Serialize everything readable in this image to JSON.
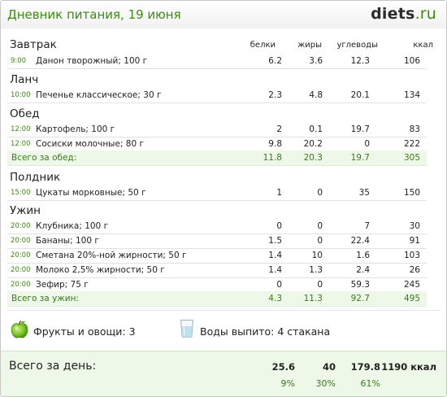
{
  "header": {
    "title": "Дневник питания, 19 июня",
    "logo_main": "diets",
    "logo_tld": ".ru"
  },
  "columns": {
    "protein": "белки",
    "fat": "жиры",
    "carbs": "углеводы",
    "kcal": "ккал"
  },
  "meals": [
    {
      "name": "Завтрак",
      "items": [
        {
          "time": "9:00",
          "food": "Данон творожный; 100 г",
          "protein": "6.2",
          "fat": "3.6",
          "carbs": "12.3",
          "kcal": "106"
        }
      ]
    },
    {
      "name": "Ланч",
      "items": [
        {
          "time": "10:00",
          "food": "Печенье классическое; 30 г",
          "protein": "2.3",
          "fat": "4.8",
          "carbs": "20.1",
          "kcal": "134"
        }
      ]
    },
    {
      "name": "Обед",
      "items": [
        {
          "time": "12:00",
          "food": "Картофель; 100 г",
          "protein": "2",
          "fat": "0.1",
          "carbs": "19.7",
          "kcal": "83"
        },
        {
          "time": "12:00",
          "food": "Сосиски молочные; 80 г",
          "protein": "9.8",
          "fat": "20.2",
          "carbs": "0",
          "kcal": "222"
        }
      ],
      "total": {
        "label": "Всего за обед:",
        "protein": "11.8",
        "fat": "20.3",
        "carbs": "19.7",
        "kcal": "305"
      }
    },
    {
      "name": "Полдник",
      "items": [
        {
          "time": "15:00",
          "food": "Цукаты морковные; 50 г",
          "protein": "1",
          "fat": "0",
          "carbs": "35",
          "kcal": "150"
        }
      ]
    },
    {
      "name": "Ужин",
      "items": [
        {
          "time": "20:00",
          "food": "Клубника; 100 г",
          "protein": "0",
          "fat": "0",
          "carbs": "7",
          "kcal": "30"
        },
        {
          "time": "20:00",
          "food": "Бананы; 100 г",
          "protein": "1.5",
          "fat": "0",
          "carbs": "22.4",
          "kcal": "91"
        },
        {
          "time": "20:00",
          "food": "Сметана 20%-ной жирности; 50 г",
          "protein": "1.4",
          "fat": "10",
          "carbs": "1.6",
          "kcal": "103"
        },
        {
          "time": "20:00",
          "food": "Молоко 2,5% жирности; 50 г",
          "protein": "1.4",
          "fat": "1.3",
          "carbs": "2.4",
          "kcal": "26"
        },
        {
          "time": "20:00",
          "food": "Зефир; 75 г",
          "protein": "0",
          "fat": "0",
          "carbs": "59.3",
          "kcal": "245"
        }
      ],
      "total": {
        "label": "Всего за ужин:",
        "protein": "4.3",
        "fat": "11.3",
        "carbs": "92.7",
        "kcal": "495"
      }
    }
  ],
  "extras": {
    "fruits_icon": "green-apple-icon",
    "fruits": "Фрукты и овощи: 3",
    "water_icon": "water-glass-icon",
    "water": "Воды выпито: 4 стакана"
  },
  "day_total": {
    "label": "Всего за день:",
    "protein": "25.6",
    "fat": "40",
    "carbs": "179.8",
    "kcal": "1190 ккал",
    "protein_pct": "9%",
    "fat_pct": "30%",
    "carbs_pct": "61%"
  },
  "colors": {
    "accent_green": "#3d8b10",
    "total_bg": "#eef8e8"
  }
}
